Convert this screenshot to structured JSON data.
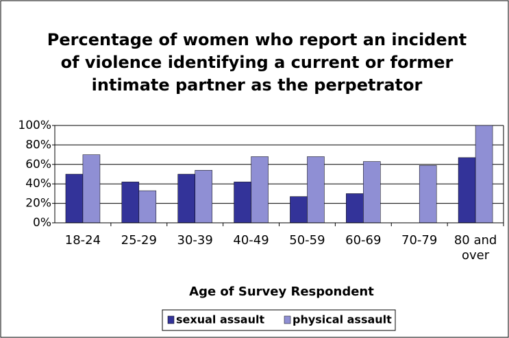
{
  "chart_data": {
    "type": "bar",
    "title": "Percentage of women who report an incident of violence identifying a current or former intimate partner as the perpetrator",
    "x_label": "Age of Survey Respondent",
    "categories": [
      "18-24",
      "25-29",
      "30-39",
      "40-49",
      "50-59",
      "60-69",
      "70-79",
      "80 and over"
    ],
    "series": [
      {
        "name": "sexual assault",
        "color": "#333399",
        "values": [
          50,
          42,
          50,
          42,
          27,
          30,
          null,
          67
        ]
      },
      {
        "name": "physical assault",
        "color": "#8f8fd4",
        "values": [
          70,
          33,
          54,
          68,
          68,
          63,
          59,
          100
        ]
      }
    ],
    "ylim": [
      0,
      100
    ],
    "yticks": [
      {
        "value": 0,
        "label": "0%"
      },
      {
        "value": 20,
        "label": "20%"
      },
      {
        "value": 40,
        "label": "40%"
      },
      {
        "value": 60,
        "label": "60%"
      },
      {
        "value": 80,
        "label": "80%"
      },
      {
        "value": 100,
        "label": "100%"
      }
    ],
    "grid": true,
    "legend": "bottom"
  }
}
